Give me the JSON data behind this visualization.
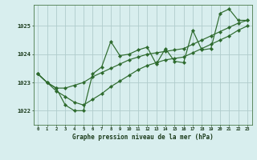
{
  "x": [
    0,
    1,
    2,
    3,
    4,
    5,
    6,
    7,
    8,
    9,
    10,
    11,
    12,
    13,
    14,
    15,
    16,
    17,
    18,
    19,
    20,
    21,
    22,
    23
  ],
  "line_main": [
    1023.3,
    1023.0,
    1022.8,
    1022.2,
    1022.0,
    1022.0,
    1023.3,
    1023.55,
    1024.45,
    1023.95,
    1024.0,
    1024.15,
    1024.25,
    1023.65,
    1024.2,
    1023.75,
    1023.7,
    1024.85,
    1024.15,
    1024.2,
    1025.45,
    1025.6,
    1025.2,
    1025.2
  ],
  "line_trend1": [
    1023.3,
    1023.0,
    1022.8,
    1022.8,
    1022.9,
    1023.0,
    1023.2,
    1023.35,
    1023.5,
    1023.65,
    1023.8,
    1023.9,
    1024.0,
    1024.05,
    1024.1,
    1024.15,
    1024.2,
    1024.35,
    1024.5,
    1024.65,
    1024.8,
    1024.95,
    1025.1,
    1025.2
  ],
  "line_trend2": [
    1023.3,
    1023.0,
    1022.7,
    1022.5,
    1022.3,
    1022.2,
    1022.4,
    1022.6,
    1022.85,
    1023.05,
    1023.25,
    1023.45,
    1023.6,
    1023.7,
    1023.8,
    1023.85,
    1023.9,
    1024.05,
    1024.2,
    1024.35,
    1024.5,
    1024.65,
    1024.85,
    1025.0
  ],
  "bg_color": "#d8eeee",
  "line_color": "#2d6a2d",
  "grid_color": "#b0cccc",
  "xlabel": "Graphe pression niveau de la mer (hPa)",
  "ylim": [
    1021.5,
    1025.75
  ],
  "xlim": [
    -0.5,
    23.5
  ],
  "yticks": [
    1022,
    1023,
    1024,
    1025
  ],
  "xticks": [
    0,
    1,
    2,
    3,
    4,
    5,
    6,
    7,
    8,
    9,
    10,
    11,
    12,
    13,
    14,
    15,
    16,
    17,
    18,
    19,
    20,
    21,
    22,
    23
  ]
}
